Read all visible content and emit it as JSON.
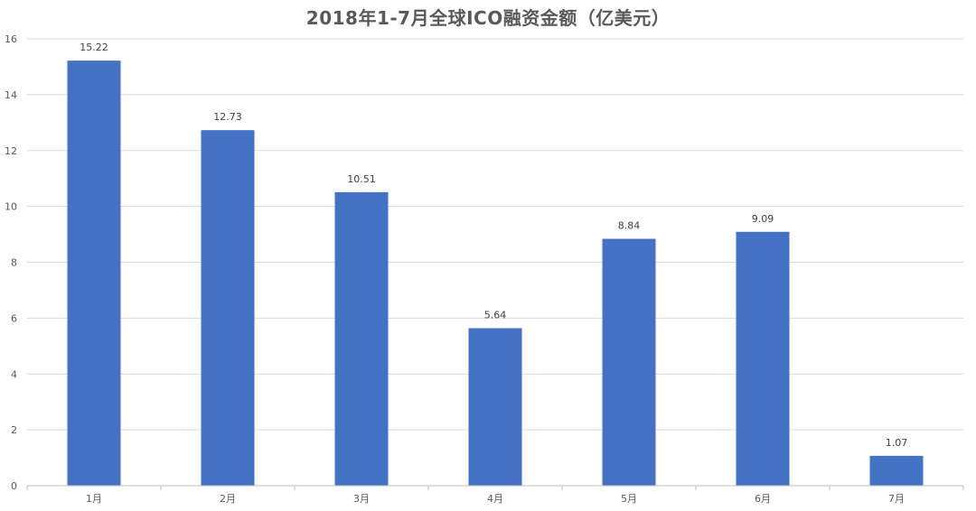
{
  "chart_data": {
    "type": "bar",
    "title": "2018年1-7月全球ICO融资金额（亿美元）",
    "categories": [
      "1月",
      "2月",
      "3月",
      "4月",
      "5月",
      "6月",
      "7月"
    ],
    "values": [
      15.22,
      12.73,
      10.51,
      5.64,
      8.84,
      9.09,
      1.07
    ],
    "data_labels": [
      "15.22",
      "12.73",
      "10.51",
      "5.64",
      "8.84",
      "9.09",
      "1.07"
    ],
    "y_ticks": [
      0,
      2,
      4,
      6,
      8,
      10,
      12,
      14,
      16
    ],
    "ylim": [
      0,
      16
    ],
    "xlabel": "",
    "ylabel": "",
    "grid": true,
    "legend": "none",
    "bar_color": "#4472C4",
    "grid_color": "#D9D9D9",
    "axis_color": "#BFBFBF"
  }
}
